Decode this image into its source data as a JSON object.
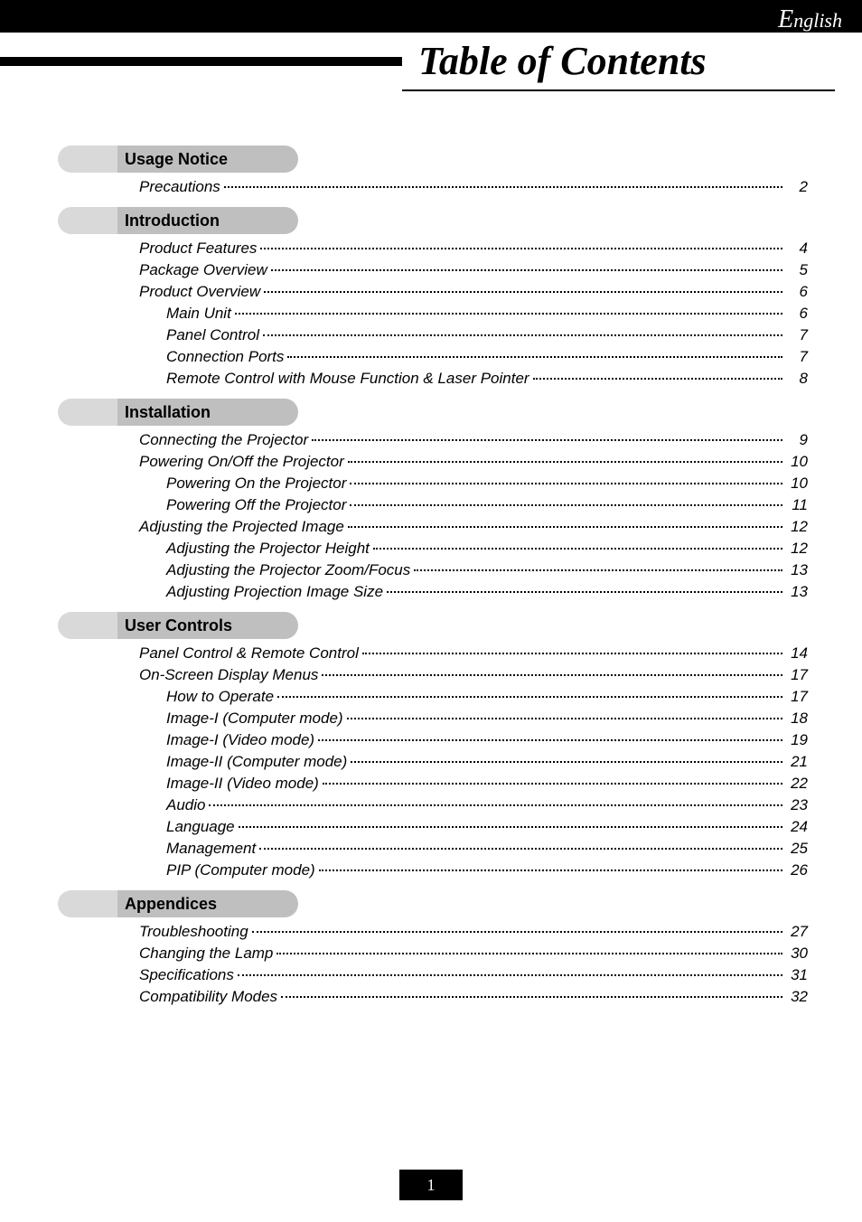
{
  "language_label": "English",
  "title": "Table of Contents",
  "page_number": "1",
  "sections": [
    {
      "heading": "Usage Notice",
      "items": [
        {
          "label": "Precautions",
          "page": "2",
          "level": 1
        }
      ]
    },
    {
      "heading": "Introduction",
      "items": [
        {
          "label": "Product Features",
          "page": "4",
          "level": 1
        },
        {
          "label": "Package Overview",
          "page": "5",
          "level": 1
        },
        {
          "label": "Product Overview",
          "page": "6",
          "level": 1
        },
        {
          "label": "Main Unit",
          "page": "6",
          "level": 2
        },
        {
          "label": "Panel Control",
          "page": "7",
          "level": 2
        },
        {
          "label": "Connection Ports",
          "page": "7",
          "level": 2
        },
        {
          "label": "Remote Control with Mouse Function & Laser Pointer",
          "page": "8",
          "level": 2
        }
      ]
    },
    {
      "heading": "Installation",
      "items": [
        {
          "label": "Connecting the Projector",
          "page": "9",
          "level": 1
        },
        {
          "label": "Powering On/Off the Projector",
          "page": "10",
          "level": 1
        },
        {
          "label": "Powering On the Projector",
          "page": "10",
          "level": 2
        },
        {
          "label": "Powering Off the Projector",
          "page": "11",
          "level": 2
        },
        {
          "label": "Adjusting the Projected Image",
          "page": "12",
          "level": 1
        },
        {
          "label": "Adjusting the Projector Height",
          "page": "12",
          "level": 2
        },
        {
          "label": "Adjusting the Projector Zoom/Focus",
          "page": "13",
          "level": 2
        },
        {
          "label": "Adjusting Projection Image Size",
          "page": "13",
          "level": 2
        }
      ]
    },
    {
      "heading": "User Controls",
      "items": [
        {
          "label": "Panel Control & Remote Control",
          "page": "14",
          "level": 1
        },
        {
          "label": "On-Screen Display Menus",
          "page": "17",
          "level": 1
        },
        {
          "label": "How to Operate",
          "page": "17",
          "level": 2
        },
        {
          "label": "Image-I (Computer mode)",
          "page": "18",
          "level": 2
        },
        {
          "label": "Image-I (Video mode)",
          "page": "19",
          "level": 2
        },
        {
          "label": "Image-II (Computer mode)",
          "page": "21",
          "level": 2
        },
        {
          "label": "Image-II (Video mode)",
          "page": "22",
          "level": 2
        },
        {
          "label": "Audio",
          "page": "23",
          "level": 2
        },
        {
          "label": "Language",
          "page": "24",
          "level": 2
        },
        {
          "label": "Management",
          "page": "25",
          "level": 2
        },
        {
          "label": "PIP (Computer mode)",
          "page": "26",
          "level": 2
        }
      ]
    },
    {
      "heading": "Appendices",
      "items": [
        {
          "label": "Troubleshooting",
          "page": "27",
          "level": 1
        },
        {
          "label": "Changing the Lamp",
          "page": "30",
          "level": 1
        },
        {
          "label": "Specifications",
          "page": "31",
          "level": 1
        },
        {
          "label": "Compatibility Modes",
          "page": "32",
          "level": 1
        }
      ]
    }
  ]
}
